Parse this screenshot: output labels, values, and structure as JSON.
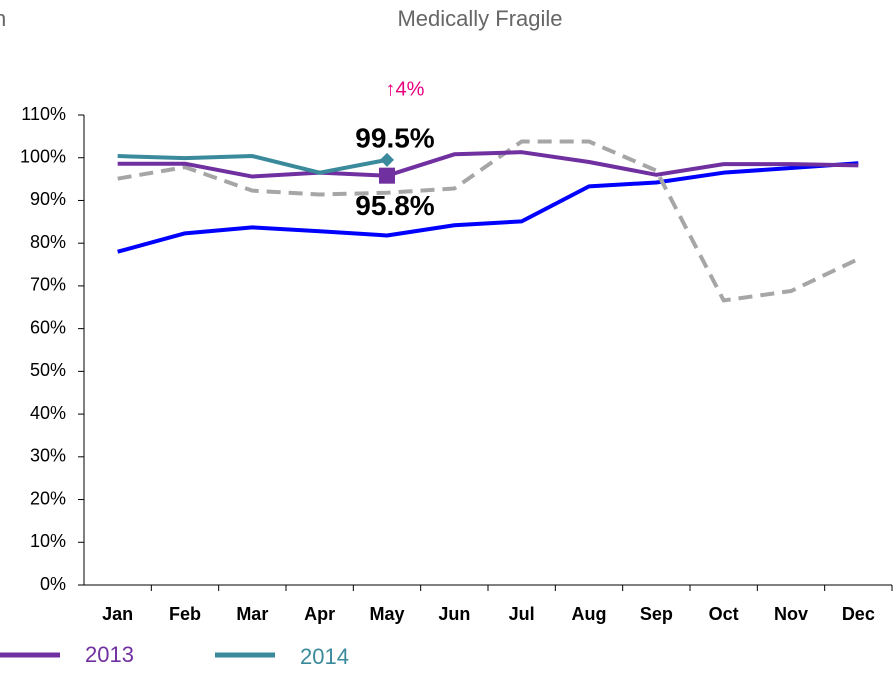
{
  "chart_data": {
    "type": "line",
    "title": "Medically Fragile",
    "corner_text": "n",
    "annotation": "↑4%",
    "categories": [
      "Jan",
      "Feb",
      "Mar",
      "Apr",
      "May",
      "Jun",
      "Jul",
      "Aug",
      "Sep",
      "Oct",
      "Nov",
      "Dec"
    ],
    "series": [
      {
        "color": "#0000ff",
        "dash": false,
        "values": [
          78,
          82.3,
          83.7,
          82.8,
          81.8,
          84.2,
          85.1,
          93.3,
          94.2,
          96.5,
          97.6,
          98.7
        ]
      },
      {
        "color": "#a6a6a6",
        "dash": true,
        "values": [
          95.1,
          97.8,
          92.3,
          91.4,
          91.8,
          92.8,
          103.8,
          103.8,
          97,
          66.6,
          68.8,
          76.3
        ]
      },
      {
        "name": "2013",
        "color": "#7030a0",
        "dash": false,
        "marker": "square",
        "values": [
          98.6,
          98.6,
          95.6,
          96.5,
          95.8,
          100.8,
          101.3,
          99,
          96,
          98.5,
          98.5,
          98.2
        ],
        "value_labels": [
          null,
          null,
          null,
          null,
          "95.8%",
          null,
          null,
          null,
          null,
          null,
          null,
          null
        ]
      },
      {
        "name": "2014",
        "color": "#3a8a9c",
        "dash": false,
        "marker": "diamond",
        "values": [
          100.4,
          99.9,
          100.4,
          96.5,
          99.5,
          null,
          null,
          null,
          null,
          null,
          null,
          null
        ],
        "value_labels": [
          null,
          null,
          null,
          null,
          "99.5%",
          null,
          null,
          null,
          null,
          null,
          null,
          null
        ]
      }
    ],
    "ylim": [
      0,
      110
    ],
    "yticks": [
      {
        "value": 0,
        "label": "0%"
      },
      {
        "value": 10,
        "label": "10%"
      },
      {
        "value": 20,
        "label": "20%"
      },
      {
        "value": 30,
        "label": "30%"
      },
      {
        "value": 40,
        "label": "40%"
      },
      {
        "value": 50,
        "label": "50%"
      },
      {
        "value": 60,
        "label": "60%"
      },
      {
        "value": 70,
        "label": "70%"
      },
      {
        "value": 80,
        "label": "80%"
      },
      {
        "value": 90,
        "label": "90%"
      },
      {
        "value": 100,
        "label": "100%"
      },
      {
        "value": 110,
        "label": "110%"
      }
    ],
    "grid": false
  }
}
